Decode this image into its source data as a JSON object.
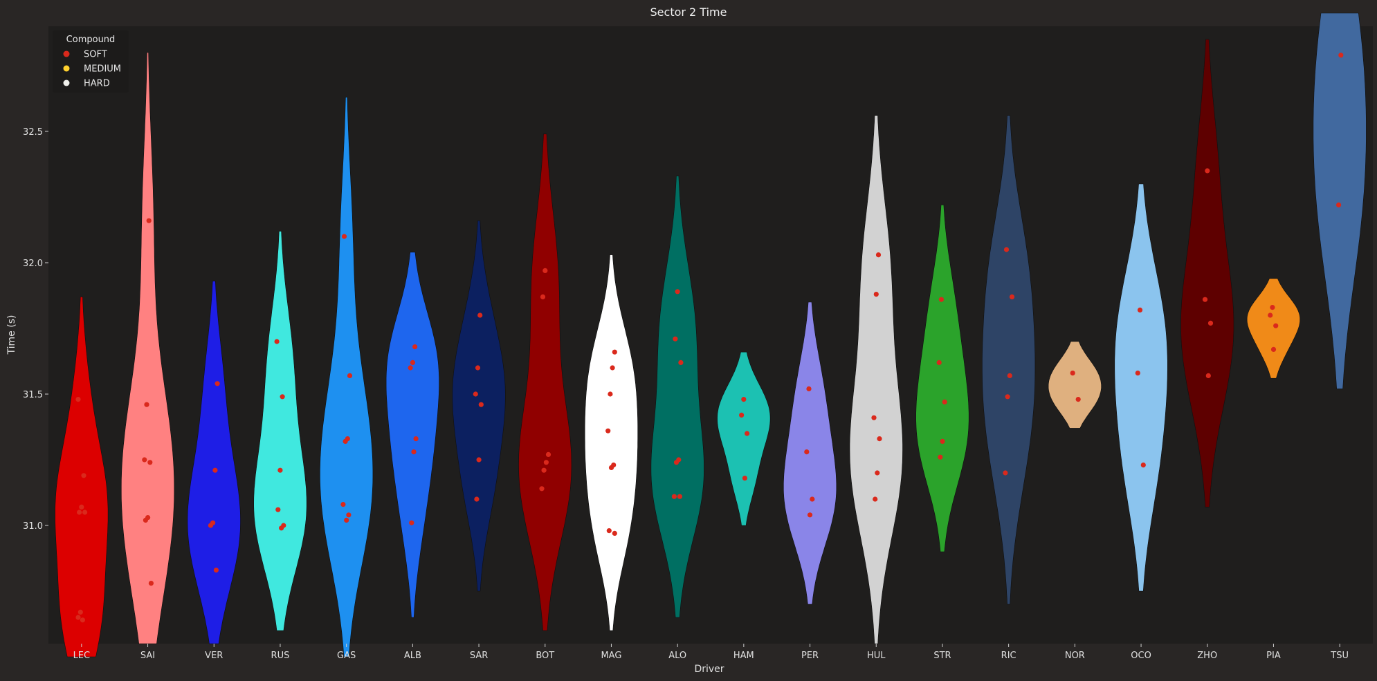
{
  "chart_data": {
    "type": "violin",
    "title": "Sector 2 Time",
    "xlabel": "Driver",
    "ylabel": "Time (s)",
    "ylim": [
      30.55,
      32.9
    ],
    "yticks": [
      31.0,
      31.5,
      32.0,
      32.5
    ],
    "grid": false,
    "legend": {
      "title": "Compound",
      "placement": "top-left",
      "entries": [
        {
          "label": "SOFT",
          "color": "#da291c"
        },
        {
          "label": "MEDIUM",
          "color": "#ffd12e"
        },
        {
          "label": "HARD",
          "color": "#f0f0ec"
        }
      ]
    },
    "categories": [
      "LEC",
      "SAI",
      "VER",
      "RUS",
      "GAS",
      "ALB",
      "SAR",
      "BOT",
      "MAG",
      "ALO",
      "HAM",
      "PER",
      "HUL",
      "STR",
      "RIC",
      "NOR",
      "OCO",
      "ZHO",
      "PIA",
      "TSU"
    ],
    "series": [
      {
        "driver": "LEC",
        "color": "#dc0000",
        "min": 30.5,
        "max": 31.87,
        "values": [
          30.65,
          30.67,
          30.64,
          31.05,
          31.05,
          31.07,
          31.19,
          31.48
        ]
      },
      {
        "driver": "SAI",
        "color": "#ff8181",
        "min": 30.55,
        "max": 32.8,
        "values": [
          30.78,
          31.02,
          31.03,
          31.24,
          31.25,
          31.46,
          32.16
        ]
      },
      {
        "driver": "VER",
        "color": "#1e1ee6",
        "min": 30.55,
        "max": 31.93,
        "values": [
          30.83,
          31.0,
          31.01,
          31.21,
          31.54
        ]
      },
      {
        "driver": "RUS",
        "color": "#40e8df",
        "min": 30.6,
        "max": 32.12,
        "values": [
          30.99,
          31.0,
          31.06,
          31.21,
          31.49,
          31.7
        ]
      },
      {
        "driver": "GAS",
        "color": "#1e90f0",
        "min": 30.5,
        "max": 32.63,
        "values": [
          31.02,
          31.04,
          31.08,
          31.32,
          31.33,
          31.57,
          32.1
        ]
      },
      {
        "driver": "ALB",
        "color": "#1e66ee",
        "min": 30.65,
        "max": 32.04,
        "values": [
          31.01,
          31.28,
          31.33,
          31.6,
          31.62,
          31.68
        ]
      },
      {
        "driver": "SAR",
        "color": "#0c2060",
        "min": 30.75,
        "max": 32.16,
        "values": [
          31.1,
          31.25,
          31.46,
          31.5,
          31.6,
          31.8
        ]
      },
      {
        "driver": "BOT",
        "color": "#900000",
        "min": 30.6,
        "max": 32.49,
        "values": [
          31.14,
          31.21,
          31.24,
          31.27,
          31.87,
          31.97
        ]
      },
      {
        "driver": "MAG",
        "color": "#ffffff",
        "min": 30.6,
        "max": 32.03,
        "values": [
          30.97,
          30.98,
          31.22,
          31.23,
          31.36,
          31.5,
          31.6,
          31.66
        ]
      },
      {
        "driver": "ALO",
        "color": "#006f62",
        "min": 30.65,
        "max": 32.33,
        "values": [
          31.11,
          31.11,
          31.24,
          31.25,
          31.62,
          31.71,
          31.89
        ]
      },
      {
        "driver": "HAM",
        "color": "#1cc1b2",
        "min": 31.0,
        "max": 31.66,
        "values": [
          31.18,
          31.35,
          31.42,
          31.48
        ]
      },
      {
        "driver": "PER",
        "color": "#8a85e8",
        "min": 30.7,
        "max": 31.85,
        "values": [
          31.04,
          31.1,
          31.28,
          31.52
        ]
      },
      {
        "driver": "HUL",
        "color": "#d2d2d2",
        "min": 30.55,
        "max": 32.56,
        "values": [
          31.1,
          31.2,
          31.33,
          31.41,
          31.88,
          32.03
        ]
      },
      {
        "driver": "STR",
        "color": "#2ba32b",
        "min": 30.9,
        "max": 32.22,
        "values": [
          31.26,
          31.32,
          31.47,
          31.62,
          31.86
        ]
      },
      {
        "driver": "RIC",
        "color": "#2e4466",
        "min": 30.7,
        "max": 32.56,
        "values": [
          31.2,
          31.49,
          31.57,
          31.87,
          32.05
        ]
      },
      {
        "driver": "NOR",
        "color": "#dfb07f",
        "min": 31.37,
        "max": 31.7,
        "values": [
          31.48,
          31.58
        ]
      },
      {
        "driver": "OCO",
        "color": "#8bc4ee",
        "min": 30.75,
        "max": 32.3,
        "values": [
          31.23,
          31.58,
          31.82
        ]
      },
      {
        "driver": "ZHO",
        "color": "#5e0000",
        "min": 31.07,
        "max": 32.85,
        "values": [
          31.57,
          31.77,
          31.86,
          32.35
        ]
      },
      {
        "driver": "PIA",
        "color": "#f08a18",
        "min": 31.56,
        "max": 31.94,
        "values": [
          31.67,
          31.76,
          31.8,
          31.83
        ]
      },
      {
        "driver": "TSU",
        "color": "#41699f",
        "min": 31.52,
        "max": 32.95,
        "values": [
          32.22,
          32.79
        ]
      }
    ]
  }
}
